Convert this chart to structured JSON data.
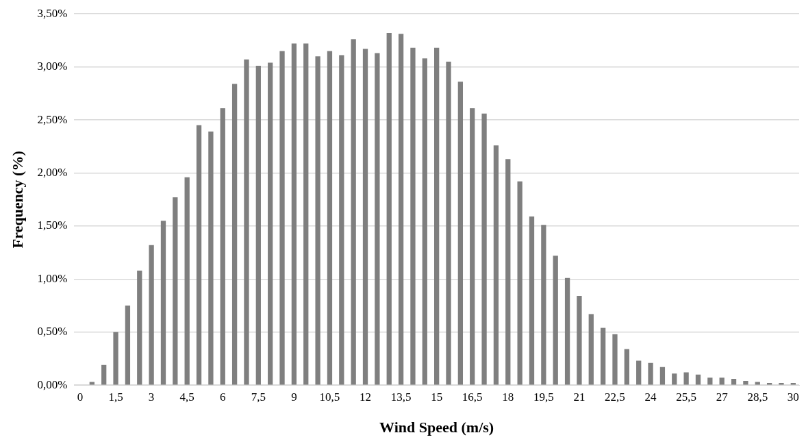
{
  "chart_data": {
    "type": "bar",
    "xlabel": "Wind Speed (m/s)",
    "ylabel": "Frequency (%)",
    "categories": [
      "0",
      null,
      null,
      "1,5",
      null,
      null,
      "3",
      null,
      null,
      "4,5",
      null,
      null,
      "6",
      null,
      null,
      "7,5",
      null,
      null,
      "9",
      null,
      null,
      "10,5",
      null,
      null,
      "12",
      null,
      null,
      "13,5",
      null,
      null,
      "15",
      null,
      null,
      "16,5",
      null,
      null,
      "18",
      null,
      null,
      "19,5",
      null,
      null,
      "21",
      null,
      null,
      "22,5",
      null,
      null,
      "24",
      null,
      null,
      "25,5",
      null,
      null,
      "27",
      null,
      null,
      "28,5",
      null,
      null,
      "30"
    ],
    "values": [
      null,
      0.03,
      0.19,
      0.5,
      0.75,
      1.08,
      1.32,
      1.55,
      1.77,
      1.96,
      2.45,
      2.39,
      2.61,
      2.84,
      3.07,
      3.01,
      3.04,
      3.15,
      3.22,
      3.22,
      3.1,
      3.15,
      3.11,
      3.26,
      3.17,
      3.13,
      3.32,
      3.31,
      3.18,
      3.08,
      3.18,
      3.05,
      2.86,
      2.61,
      2.56,
      2.26,
      2.13,
      1.92,
      1.59,
      1.51,
      1.22,
      1.01,
      0.84,
      0.67,
      0.54,
      0.48,
      0.34,
      0.23,
      0.21,
      0.17,
      0.11,
      0.12,
      0.1,
      0.07,
      0.07,
      0.06,
      0.04,
      0.03,
      0.02,
      0.02,
      0.02
    ],
    "color": "#7f7f7f",
    "ylim": [
      0,
      3.5
    ],
    "yticks": [
      {
        "value": 0,
        "label": "0,00%"
      },
      {
        "value": 0.5,
        "label": "0,50%"
      },
      {
        "value": 1,
        "label": "1,00%"
      },
      {
        "value": 1.5,
        "label": "1,50%"
      },
      {
        "value": 2,
        "label": "2,00%"
      },
      {
        "value": 2.5,
        "label": "2,50%"
      },
      {
        "value": 3,
        "label": "3,00%"
      },
      {
        "value": 3.5,
        "label": "3,50%"
      }
    ],
    "grid": "y",
    "legend": false
  }
}
